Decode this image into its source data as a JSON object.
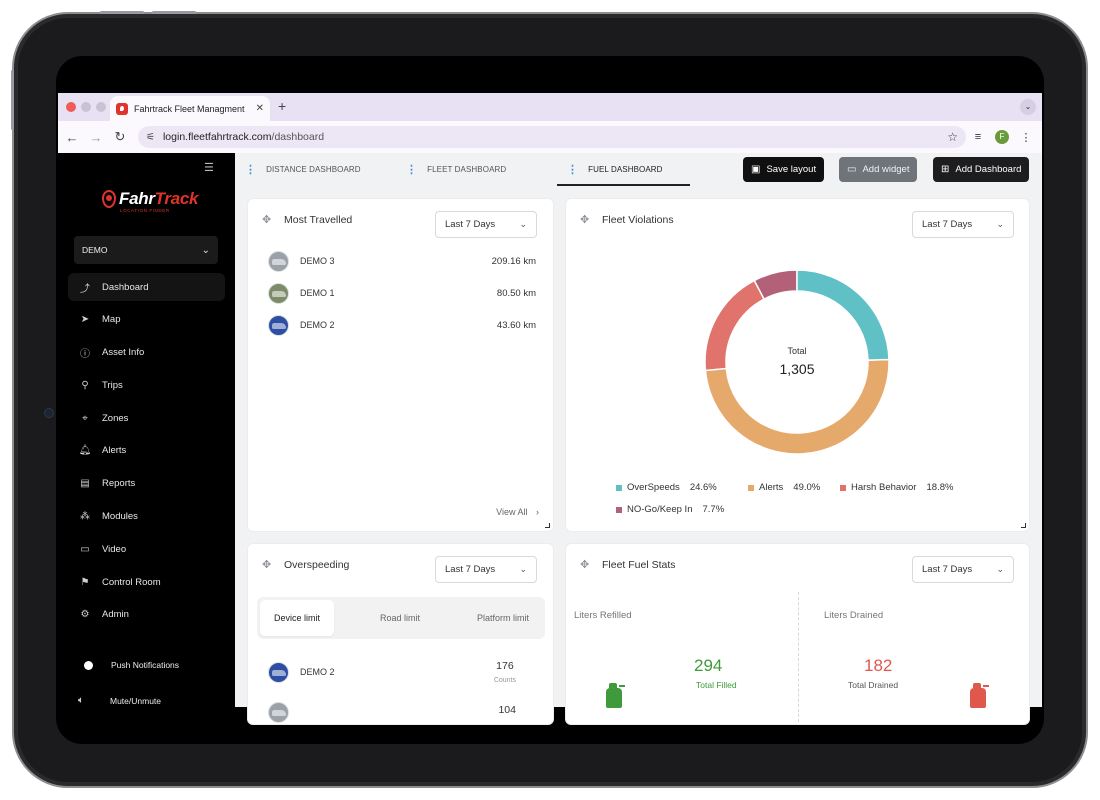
{
  "browser": {
    "tab_title": "Fahrtrack Fleet Managment",
    "tab_close": "✕",
    "new_tab": "+",
    "tab_menu": "⌄",
    "url_host": "login.fleetfahrtrack.com",
    "url_path": "/dashboard",
    "profile_initial": "F"
  },
  "sidebar": {
    "logo_word1": "Fahr",
    "logo_word2": "Track",
    "logo_sub": "LOCATION FINDER",
    "org": "DEMO",
    "items": [
      {
        "label": "Dashboard",
        "icon": "dashboard-icon",
        "glyph": "⤴"
      },
      {
        "label": "Map",
        "icon": "map-icon",
        "glyph": "➤"
      },
      {
        "label": "Asset Info",
        "icon": "info-icon",
        "glyph": "ⓘ"
      },
      {
        "label": "Trips",
        "icon": "trips-icon",
        "glyph": "⚲"
      },
      {
        "label": "Zones",
        "icon": "zones-icon",
        "glyph": "⌖"
      },
      {
        "label": "Alerts",
        "icon": "bell-icon",
        "glyph": "🔔︎"
      },
      {
        "label": "Reports",
        "icon": "report-icon",
        "glyph": "▤"
      },
      {
        "label": "Modules",
        "icon": "modules-icon",
        "glyph": "⁂"
      },
      {
        "label": "Video",
        "icon": "video-icon",
        "glyph": "▭"
      },
      {
        "label": "Control Room",
        "icon": "control-room-icon",
        "glyph": "⚑"
      },
      {
        "label": "Admin",
        "icon": "gear-icon",
        "glyph": "⚙"
      }
    ],
    "push_notifications": "Push Notifications",
    "mute": "Mute/Unmute"
  },
  "tabs": [
    {
      "label": "DISTANCE DASHBOARD"
    },
    {
      "label": "FLEET DASHBOARD"
    },
    {
      "label": "FUEL DASHBOARD"
    }
  ],
  "toolbar": {
    "save_layout": "Save layout",
    "add_widget": "Add widget",
    "add_dashboard": "Add Dashboard"
  },
  "most_travelled": {
    "title": "Most Travelled",
    "range": "Last 7 Days",
    "rows": [
      {
        "name": "DEMO 3",
        "value": "209.16 km",
        "color": "#9aa1a8"
      },
      {
        "name": "DEMO 1",
        "value": "80.50 km",
        "color": "#7c8b6a"
      },
      {
        "name": "DEMO 2",
        "value": "43.60 km",
        "color": "#2c4fa3"
      }
    ],
    "view_all": "View All"
  },
  "fleet_violations": {
    "title": "Fleet Violations",
    "range": "Last 7 Days",
    "total_label": "Total",
    "total_value": "1,305",
    "legend": [
      {
        "name": "OverSpeeds",
        "pct": "24.6%",
        "share": 24.6,
        "color": "#5fc0c6"
      },
      {
        "name": "Alerts",
        "pct": "49.0%",
        "share": 49.0,
        "color": "#e6a96c"
      },
      {
        "name": "Harsh Behavior",
        "pct": "18.8%",
        "share": 18.8,
        "color": "#e0736c"
      },
      {
        "name": "NO-Go/Keep In",
        "pct": "7.7%",
        "share": 7.7,
        "color": "#b36179"
      }
    ]
  },
  "overspeeding": {
    "title": "Overspeeding",
    "range": "Last 7 Days",
    "segments": [
      "Device limit",
      "Road limit",
      "Platform limit"
    ],
    "rows": [
      {
        "name": "DEMO 2",
        "value": "176",
        "unit": "Counts",
        "color": "#2c4fa3"
      },
      {
        "name": "",
        "value": "104",
        "unit": "",
        "color": "#9aa1a8"
      }
    ]
  },
  "fuel_stats": {
    "title": "Fleet Fuel Stats",
    "range": "Last 7 Days",
    "refilled_label": "Liters Refilled",
    "refilled_value": "294",
    "refilled_sub": "Total Filled",
    "drained_label": "Liters Drained",
    "drained_value": "182",
    "drained_sub": "Total Drained",
    "refill_color": "#3e9a3a",
    "drain_color": "#e0574c"
  },
  "glyphs": {
    "chevron": "⌄",
    "chevron_right": "›",
    "drag": "✥",
    "kebab": "⋮",
    "collapse": "☰",
    "mute": "🔈︎"
  }
}
